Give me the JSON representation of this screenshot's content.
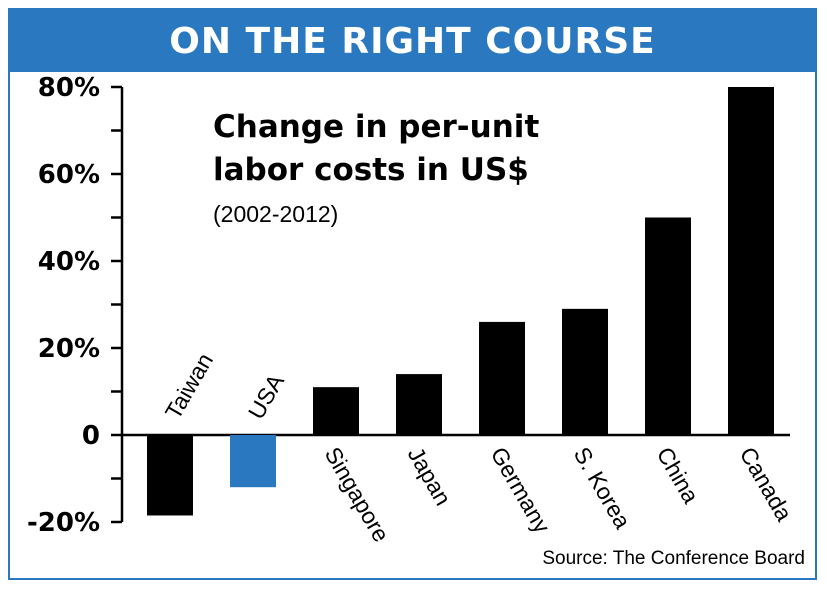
{
  "header": {
    "title": "ON THE RIGHT COURSE"
  },
  "chart_title": {
    "line1": "Change in per-unit",
    "line2": "labor costs in US$",
    "subtitle": "(2002-2012)"
  },
  "source": "Source: The Conference Board",
  "colors": {
    "accent": "#2a78c0",
    "bar": "#000000",
    "highlight": "#2a78c0"
  },
  "chart_data": {
    "type": "bar",
    "title": "Change in per-unit labor costs in US$",
    "subtitle": "(2002-2012)",
    "categories": [
      "Taiwan",
      "USA",
      "Singapore",
      "Japan",
      "Germany",
      "S. Korea",
      "China",
      "Canada"
    ],
    "values": [
      -18.5,
      -12,
      11,
      14,
      26,
      29,
      50,
      80
    ],
    "highlight": "USA",
    "ylim": [
      -20,
      80
    ],
    "yticks": [
      -20,
      0,
      20,
      40,
      60,
      80
    ],
    "ytick_labels": [
      "-20%",
      "0",
      "20%",
      "40%",
      "60%",
      "80%"
    ],
    "xlabel": "",
    "ylabel": "",
    "grid": false,
    "legend": "none"
  }
}
